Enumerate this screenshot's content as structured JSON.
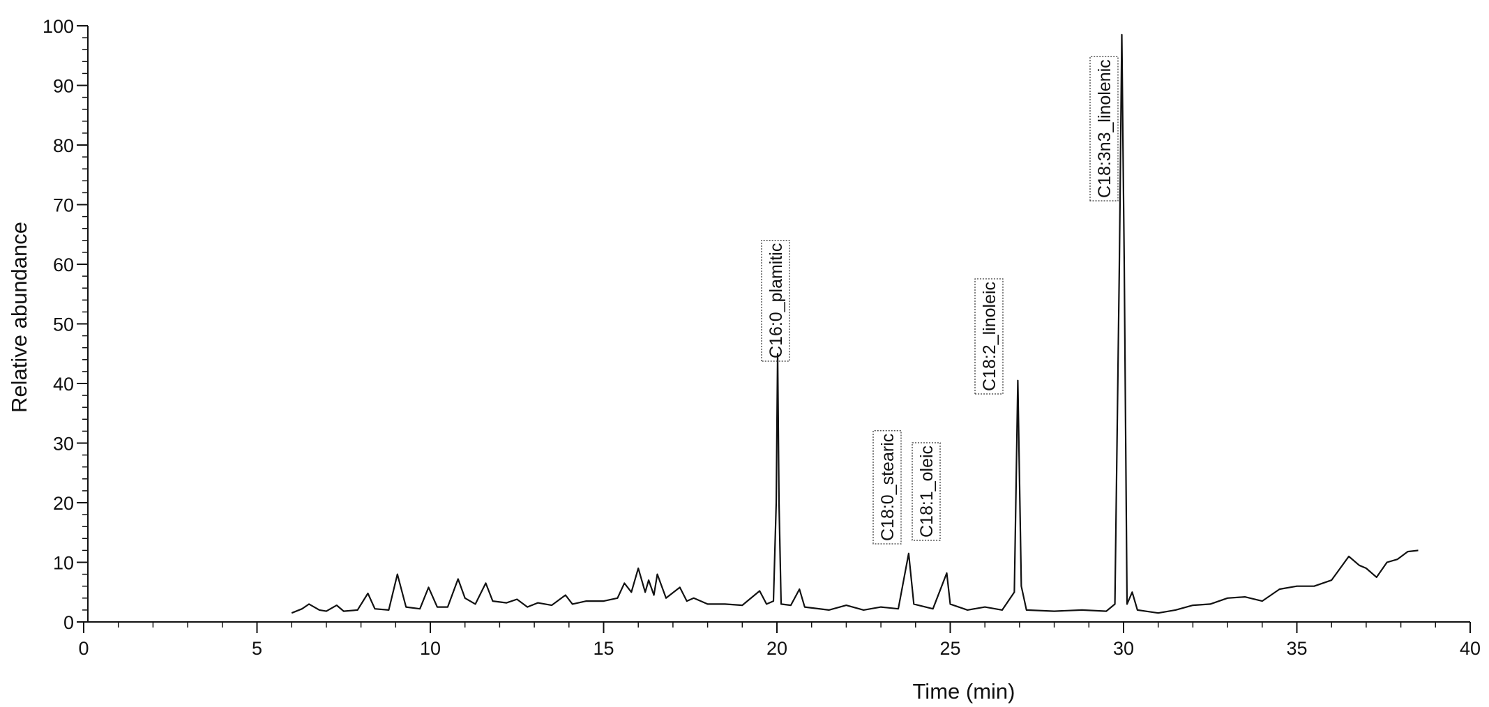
{
  "chart_data": {
    "type": "line",
    "xlabel": "Time (min)",
    "ylabel": "Relative abundance",
    "xlim": [
      0,
      40
    ],
    "ylim": [
      0,
      100
    ],
    "xticks": [
      0,
      5,
      10,
      15,
      20,
      25,
      30,
      35,
      40
    ],
    "yticks": [
      0,
      10,
      20,
      30,
      40,
      50,
      60,
      70,
      80,
      90,
      100
    ],
    "minor_tick_step": {
      "x": 1,
      "y": 2
    },
    "grid": false,
    "series": [
      {
        "color": "#111111",
        "x": [
          6.0,
          6.3,
          6.5,
          6.8,
          7.0,
          7.3,
          7.5,
          7.9,
          8.2,
          8.4,
          8.8,
          9.05,
          9.3,
          9.7,
          9.95,
          10.2,
          10.5,
          10.8,
          11.0,
          11.3,
          11.6,
          11.8,
          12.2,
          12.5,
          12.8,
          13.1,
          13.5,
          13.9,
          14.1,
          14.5,
          15.0,
          15.4,
          15.6,
          15.8,
          16.0,
          16.2,
          16.3,
          16.45,
          16.55,
          16.8,
          17.2,
          17.4,
          17.6,
          18.0,
          18.5,
          19.0,
          19.5,
          19.7,
          19.9,
          19.98,
          20.02,
          20.06,
          20.12,
          20.4,
          20.65,
          20.8,
          21.5,
          22.0,
          22.5,
          23.0,
          23.5,
          23.8,
          23.95,
          24.5,
          24.9,
          25.0,
          25.5,
          26.0,
          26.5,
          26.85,
          26.95,
          27.05,
          27.2,
          28.0,
          28.8,
          29.5,
          29.75,
          29.88,
          29.95,
          30.02,
          30.1,
          30.25,
          30.4,
          31.0,
          31.5,
          32.0,
          32.5,
          33.0,
          33.5,
          34.0,
          34.5,
          35.0,
          35.5,
          36.0,
          36.5,
          36.8,
          37.0,
          37.3,
          37.6,
          37.9,
          38.2,
          38.5
        ],
        "values": [
          1.5,
          2.2,
          3.0,
          2.0,
          1.8,
          2.8,
          1.8,
          2.0,
          4.8,
          2.2,
          2.0,
          8.0,
          2.5,
          2.2,
          5.8,
          2.5,
          2.5,
          7.2,
          4.0,
          3.0,
          6.5,
          3.5,
          3.2,
          3.8,
          2.5,
          3.2,
          2.8,
          4.5,
          3.0,
          3.5,
          3.5,
          4.0,
          6.5,
          5.0,
          9.0,
          5.0,
          7.0,
          4.5,
          8.0,
          4.0,
          5.8,
          3.5,
          4.0,
          3.0,
          3.0,
          2.8,
          5.2,
          3.0,
          3.5,
          20,
          45,
          20,
          3.0,
          2.8,
          5.5,
          2.5,
          2.0,
          2.8,
          2.0,
          2.5,
          2.2,
          11.5,
          3.0,
          2.2,
          8.2,
          3.0,
          2.0,
          2.5,
          2.0,
          5,
          40.5,
          6,
          2.0,
          1.8,
          2.0,
          1.8,
          3,
          60,
          98.5,
          60,
          3.0,
          5.0,
          2.0,
          1.5,
          2.0,
          2.8,
          3.0,
          4.0,
          4.2,
          3.5,
          5.5,
          6.0,
          6.0,
          7.0,
          11.0,
          9.5,
          9.0,
          7.5,
          10.0,
          10.5,
          11.8,
          12.0
        ]
      }
    ],
    "annotations": [
      "C16:0_plamitic",
      "C18:0_stearic",
      "C18:1_oleic",
      "C18:2_linoleic",
      "C18:3n3_linolenic"
    ]
  }
}
